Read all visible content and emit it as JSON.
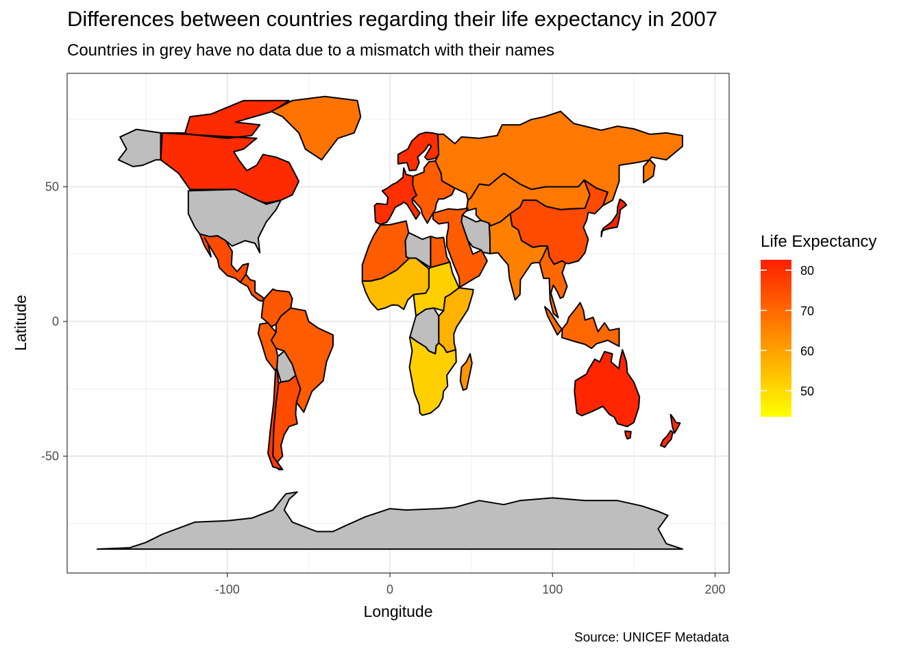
{
  "map": {
    "title": "Differences between countries regarding their life expectancy in 2007",
    "subtitle": "Countries in grey have no data due to a mismatch with their names",
    "caption": "Source: UNICEF Metadata",
    "x_axis": {
      "label": "Longitude",
      "ticks": [
        -100,
        0,
        100,
        200
      ],
      "range": [
        -190,
        210
      ]
    },
    "y_axis": {
      "label": "Latitude",
      "ticks": [
        50,
        0,
        -50
      ],
      "range": [
        -92,
        93
      ]
    },
    "legend": {
      "title": "Life Expectancy",
      "position": "right",
      "ticks": [
        80,
        70,
        60,
        50
      ],
      "range": [
        43.5,
        82.6
      ],
      "low_color": "#FFFF00",
      "high_color": "#FF2000"
    },
    "missing_color": "#BEBEBE",
    "grid": true,
    "regions": [
      {
        "name": "Alaska",
        "value": null
      },
      {
        "name": "Canada",
        "value": 80.6
      },
      {
        "name": "Greenland",
        "value": 68
      },
      {
        "name": "USA",
        "value": null
      },
      {
        "name": "Mexico",
        "value": 75
      },
      {
        "name": "Central America",
        "value": 73
      },
      {
        "name": "Colombia / Venezuela",
        "value": 73
      },
      {
        "name": "Brazil",
        "value": 72
      },
      {
        "name": "Peru",
        "value": 72
      },
      {
        "name": "Bolivia",
        "value": null
      },
      {
        "name": "Argentina",
        "value": 75
      },
      {
        "name": "Chile",
        "value": 78
      },
      {
        "name": "Western Europe",
        "value": 80
      },
      {
        "name": "Scandinavia",
        "value": 80
      },
      {
        "name": "Eastern Europe",
        "value": 72
      },
      {
        "name": "Russia",
        "value": 67
      },
      {
        "name": "Central Asia",
        "value": 67
      },
      {
        "name": "Middle East",
        "value": 72
      },
      {
        "name": "Iran",
        "value": null
      },
      {
        "name": "North Africa",
        "value": 72
      },
      {
        "name": "Libya",
        "value": null
      },
      {
        "name": "Sahel",
        "value": 55
      },
      {
        "name": "Central Africa",
        "value": 52
      },
      {
        "name": "East Africa",
        "value": 57
      },
      {
        "name": "DR Congo",
        "value": null
      },
      {
        "name": "Southern Africa",
        "value": 52
      },
      {
        "name": "Madagascar",
        "value": 62
      },
      {
        "name": "India",
        "value": 66
      },
      {
        "name": "China",
        "value": 75
      },
      {
        "name": "Japan",
        "value": 82.5
      },
      {
        "name": "Southeast Asia",
        "value": 70
      },
      {
        "name": "Indonesia",
        "value": 70
      },
      {
        "name": "Australia",
        "value": 81.5
      },
      {
        "name": "New Zealand",
        "value": 80.5
      },
      {
        "name": "Antarctica",
        "value": null
      }
    ]
  }
}
